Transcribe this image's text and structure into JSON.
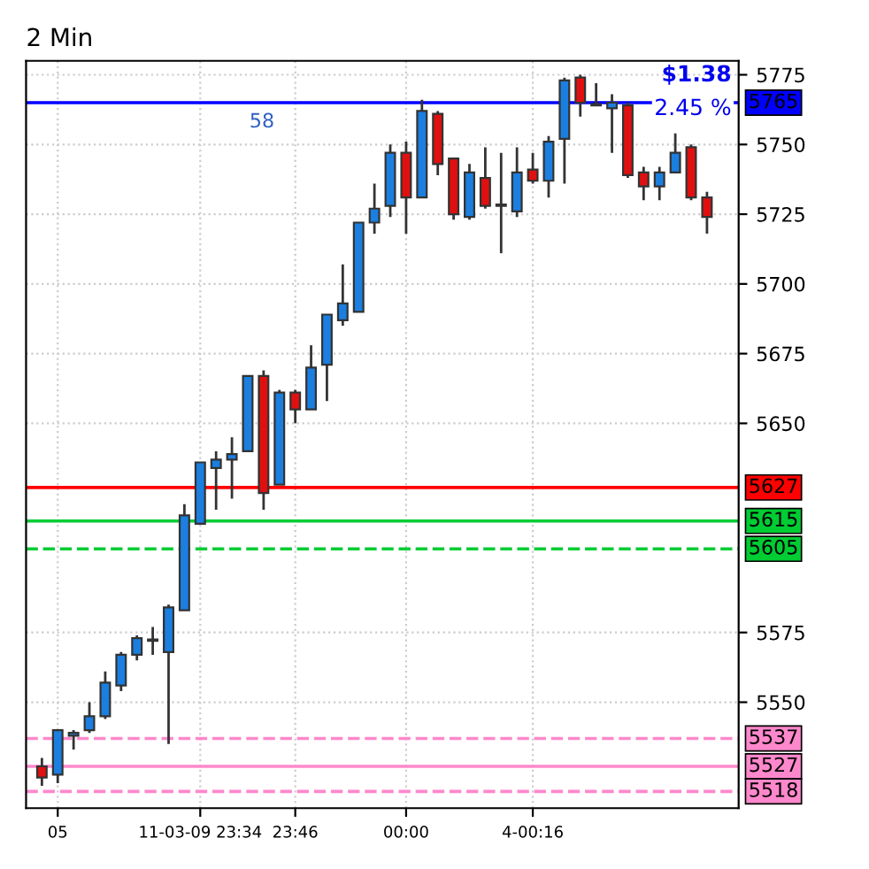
{
  "chart_data": {
    "type": "candlestick",
    "title": "2 Min",
    "categories": [
      null,
      "05",
      null,
      null,
      null,
      null,
      null,
      null,
      null,
      null,
      "11-03-09 23:34",
      null,
      null,
      null,
      null,
      null,
      "23:46",
      null,
      null,
      null,
      null,
      null,
      null,
      "00:00",
      null,
      null,
      null,
      null,
      null,
      null,
      null,
      "4-00:16",
      null,
      null,
      null,
      null,
      null,
      null,
      null,
      null,
      null,
      null,
      null
    ],
    "ohlc": [
      [
        5527,
        5530,
        5520,
        5523
      ],
      [
        5524,
        5540,
        5521,
        5540
      ],
      [
        5538,
        5540,
        5533,
        5539
      ],
      [
        5540,
        5550,
        5539,
        5545
      ],
      [
        5545,
        5561,
        5544,
        5557
      ],
      [
        5556,
        5568,
        5554,
        5567
      ],
      [
        5567,
        5574,
        5565,
        5573
      ],
      [
        5572.5,
        5577,
        5567,
        5572
      ],
      [
        5568,
        5585,
        5535,
        5584
      ],
      [
        5583,
        5621,
        5583,
        5617
      ],
      [
        5614,
        5636,
        5614,
        5636
      ],
      [
        5634,
        5640,
        5619,
        5637
      ],
      [
        5637,
        5645,
        5623,
        5639
      ],
      [
        5640,
        5667,
        5640,
        5667
      ],
      [
        5667,
        5669,
        5619,
        5625
      ],
      [
        5628,
        5662,
        5628,
        5661
      ],
      [
        5661,
        5662,
        5650,
        5655
      ],
      [
        5655,
        5678,
        5655,
        5670
      ],
      [
        5671,
        5689,
        5658,
        5689
      ],
      [
        5687,
        5707,
        5685,
        5693
      ],
      [
        5690,
        5722,
        5690,
        5722
      ],
      [
        5722,
        5736,
        5718,
        5727
      ],
      [
        5728,
        5750,
        5724,
        5747
      ],
      [
        5747,
        5751,
        5718,
        5731
      ],
      [
        5731,
        5766,
        5731,
        5762
      ],
      [
        5761,
        5762,
        5739,
        5743
      ],
      [
        5745,
        5745,
        5723,
        5725
      ],
      [
        5724,
        5743,
        5723,
        5740
      ],
      [
        5738,
        5749,
        5727,
        5728
      ],
      [
        5728.5,
        5747,
        5711,
        5728
      ],
      [
        5726,
        5749,
        5724,
        5740
      ],
      [
        5741,
        5747,
        5736,
        5737
      ],
      [
        5737,
        5753,
        5731,
        5751
      ],
      [
        5752,
        5774,
        5736,
        5773
      ],
      [
        5774,
        5775,
        5760,
        5765
      ],
      [
        5764.5,
        5772,
        5764,
        5764
      ],
      [
        5763,
        5768,
        5747,
        5765
      ],
      [
        5764,
        5765,
        5738,
        5739
      ],
      [
        5740,
        5742,
        5730,
        5735
      ],
      [
        5735,
        5742,
        5730,
        5740
      ],
      [
        5740,
        5754,
        5740,
        5747
      ],
      [
        5749,
        5750,
        5730,
        5731
      ],
      [
        5731,
        5733,
        5718,
        5724
      ]
    ],
    "ylim": [
      5512,
      5780
    ],
    "yticks": [
      5550,
      5575,
      5650,
      5675,
      5700,
      5725,
      5750,
      5775
    ],
    "grid": true,
    "ref_lines": [
      {
        "axis": "y",
        "value": 5765,
        "label": "5765",
        "color": "#0000ff",
        "line_style": "solid"
      },
      {
        "axis": "y",
        "value": 5627,
        "label": "5627",
        "color": "#ff0000",
        "line_style": "solid"
      },
      {
        "axis": "y",
        "value": 5615,
        "label": "5615",
        "color": "#00cc33",
        "line_style": "solid"
      },
      {
        "axis": "y",
        "value": 5605,
        "label": "5605",
        "color": "#00cc33",
        "line_style": "dashed"
      },
      {
        "axis": "y",
        "value": 5537,
        "label": "5537",
        "color": "#ff88cc",
        "line_style": "dashed"
      },
      {
        "axis": "y",
        "value": 5527,
        "label": "5527",
        "color": "#ff88cc",
        "line_style": "solid"
      },
      {
        "axis": "y",
        "value": 5518,
        "label": "5518",
        "color": "#ff88cc",
        "line_style": "dashed"
      }
    ],
    "annotations": [
      {
        "text": "58",
        "x": "11-03-09 23:34",
        "y": 5765
      },
      "$1.38",
      "2.45 %"
    ]
  }
}
